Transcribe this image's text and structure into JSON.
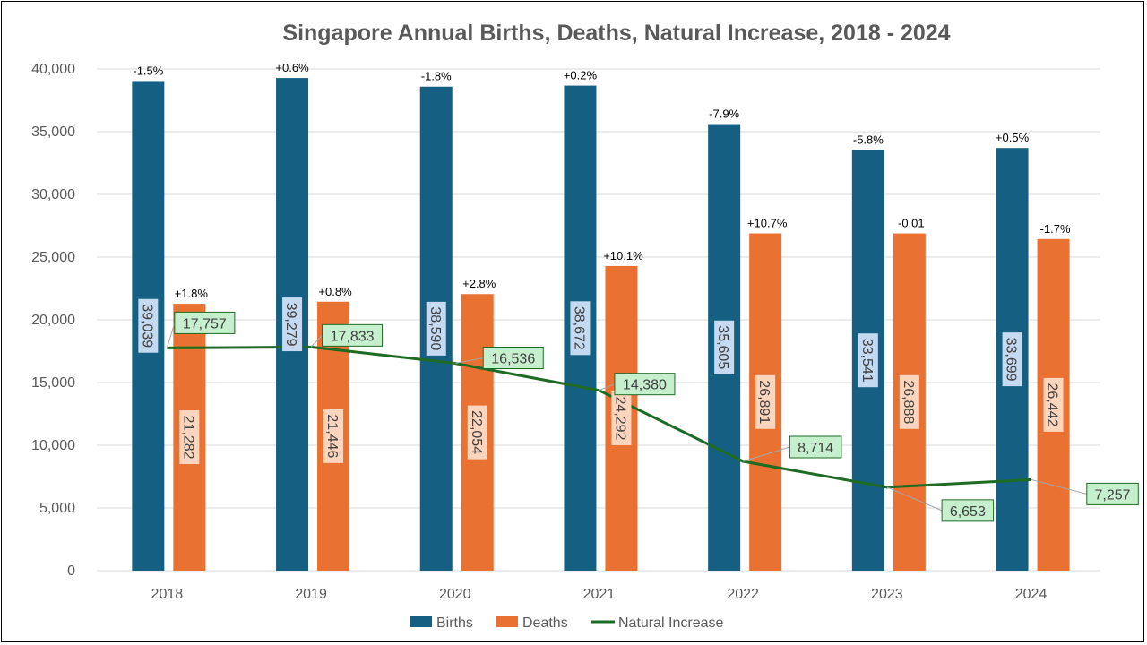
{
  "chart_data": {
    "type": "bar",
    "title": "Singapore Annual Births, Deaths, Natural Increase, 2018 - 2024",
    "categories": [
      "2018",
      "2019",
      "2020",
      "2021",
      "2022",
      "2023",
      "2024"
    ],
    "ylim": [
      0,
      40000
    ],
    "yticks": [
      "0",
      "5,000",
      "10,000",
      "15,000",
      "20,000",
      "25,000",
      "30,000",
      "35,000",
      "40,000"
    ],
    "grid": true,
    "legend_position": "bottom",
    "series": [
      {
        "name": "Births",
        "kind": "bar",
        "color": "#156082",
        "values": [
          39039,
          39279,
          38590,
          38672,
          35605,
          33541,
          33699
        ],
        "labels": [
          "39,039",
          "39,279",
          "38,590",
          "38,672",
          "35,605",
          "33,541",
          "33,699"
        ],
        "change_labels": [
          "-1.5%",
          "+0.6%",
          "-1.8%",
          "+0.2%",
          "-7.9%",
          "-5.8%",
          "+0.5%"
        ],
        "label_box_color": "#c5d9f1"
      },
      {
        "name": "Deaths",
        "kind": "bar",
        "color": "#e97132",
        "values": [
          21282,
          21446,
          22054,
          24292,
          26891,
          26888,
          26442
        ],
        "labels": [
          "21,282",
          "21,446",
          "22,054",
          "24,292",
          "26,891",
          "26,888",
          "26,442"
        ],
        "change_labels": [
          "+1.8%",
          "+0.8%",
          "+2.8%",
          "+10.1%",
          "+10.7%",
          "-0.01",
          "-1.7%"
        ],
        "label_box_color": "#fbd5bd"
      },
      {
        "name": "Natural Increase",
        "kind": "line",
        "color": "#1e6b24",
        "values": [
          17757,
          17833,
          16536,
          14380,
          8714,
          6653,
          7257
        ],
        "labels": [
          "17,757",
          "17,833",
          "16,536",
          "14,380",
          "8,714",
          "6,653",
          "7,257"
        ],
        "label_box_color": "#c6efce"
      }
    ]
  },
  "colors": {
    "gridline": "#d9d9d9",
    "axis_text": "#595959",
    "leader_line": "#a6a6a6",
    "line_label_border": "#1e6b24"
  }
}
